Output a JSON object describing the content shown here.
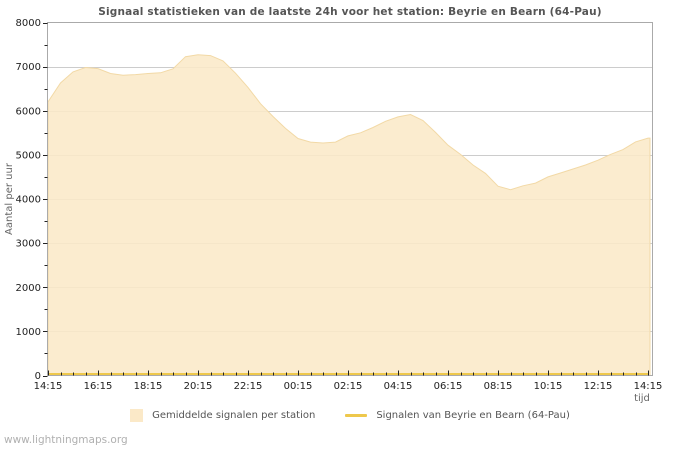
{
  "watermark": "www.lightningmaps.org",
  "colors": {
    "area_fill": "#fbe9c8",
    "area_edge": "#f2d9a6",
    "station_line": "#eec84c",
    "grid": "#cccccc",
    "plot_border": "#aaaaaa",
    "tick": "#222222",
    "tick_label": "#222222",
    "muted_text": "#666666",
    "title_text": "#555555",
    "watermark_text": "#b0b0b0"
  },
  "chart_data": {
    "type": "area",
    "title": "Signaal statistieken van de laatste 24h voor het station: Beyrie en Bearn (64-Pau)",
    "xlabel": "tijd",
    "ylabel": "Aantal per uur",
    "ylim": [
      0,
      8000
    ],
    "y_major_step": 1000,
    "y_minor_step": 500,
    "grid": "horizontal-major",
    "legend_position": "bottom-center",
    "x_tick_labels": [
      "14:15",
      "16:15",
      "18:15",
      "20:15",
      "22:15",
      "00:15",
      "02:15",
      "04:15",
      "06:15",
      "08:15",
      "10:15",
      "12:15",
      "14:15"
    ],
    "y_tick_labels": [
      "0",
      "1000",
      "2000",
      "3000",
      "4000",
      "5000",
      "6000",
      "7000",
      "8000"
    ],
    "x_interval_minutes": 30,
    "x_minor_ticks_per_major": 4,
    "series": [
      {
        "name": "Gemiddelde signalen per station",
        "type": "area",
        "color": "#fbe9c8",
        "values": [
          6200,
          6630,
          6880,
          6980,
          6955,
          6845,
          6805,
          6820,
          6845,
          6860,
          6950,
          7225,
          7270,
          7250,
          7130,
          6850,
          6530,
          6160,
          5870,
          5600,
          5370,
          5290,
          5270,
          5290,
          5430,
          5500,
          5620,
          5760,
          5860,
          5915,
          5780,
          5510,
          5220,
          5010,
          4770,
          4580,
          4290,
          4210,
          4300,
          4360,
          4500,
          4590,
          4680,
          4770,
          4880,
          5010,
          5120,
          5295,
          5380
        ]
      },
      {
        "name": "Signalen van Beyrie en Bearn (64-Pau)",
        "type": "line",
        "color": "#eec84c",
        "values": [
          0,
          0,
          0,
          0,
          0,
          0,
          0,
          0,
          0,
          0,
          0,
          0,
          0,
          0,
          0,
          0,
          0,
          0,
          0,
          0,
          0,
          0,
          0,
          0,
          0,
          0,
          0,
          0,
          0,
          0,
          0,
          0,
          0,
          0,
          0,
          0,
          0,
          0,
          0,
          0,
          0,
          0,
          0,
          0,
          0,
          0,
          0,
          0,
          0
        ]
      }
    ]
  }
}
